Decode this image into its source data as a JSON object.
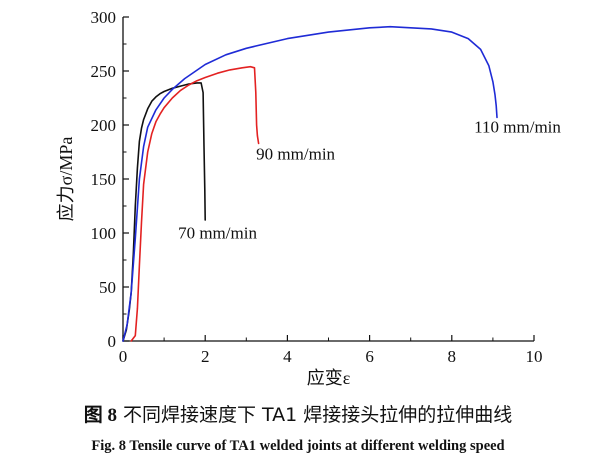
{
  "caption": {
    "cn_label": "图 8",
    "cn_text": "不同焊接速度下 TA1 焊接接头拉伸的拉伸曲线",
    "en": "Fig. 8    Tensile curve of TA1 welded joints at different welding speed"
  },
  "chart_data": {
    "type": "line",
    "xlabel": "应变ε",
    "ylabel": "应力σ/MPa",
    "xlim": [
      0,
      10
    ],
    "ylim": [
      0,
      300
    ],
    "xticks": [
      0,
      2,
      4,
      6,
      8,
      10
    ],
    "yticks": [
      0,
      50,
      100,
      150,
      200,
      250,
      300
    ],
    "grid": false,
    "legend": "none",
    "series": [
      {
        "name": "70 mm/min",
        "color": "#111111",
        "x": [
          0,
          0.08,
          0.15,
          0.2,
          0.25,
          0.3,
          0.35,
          0.4,
          0.45,
          0.5,
          0.6,
          0.7,
          0.8,
          0.9,
          1.0,
          1.2,
          1.4,
          1.6,
          1.8,
          1.9,
          1.95,
          1.97,
          1.99,
          2.0
        ],
        "y": [
          0,
          10,
          28,
          45,
          80,
          125,
          160,
          185,
          197,
          205,
          215,
          222,
          226,
          229,
          231,
          234,
          236,
          238,
          239,
          239,
          230,
          180,
          140,
          112
        ]
      },
      {
        "name": "90 mm/min",
        "color": "#e32222",
        "x": [
          0.2,
          0.3,
          0.35,
          0.4,
          0.45,
          0.5,
          0.6,
          0.7,
          0.8,
          0.9,
          1.0,
          1.2,
          1.4,
          1.6,
          1.8,
          2.0,
          2.3,
          2.6,
          2.9,
          3.1,
          3.2,
          3.23,
          3.25,
          3.27,
          3.3
        ],
        "y": [
          0,
          5,
          30,
          70,
          110,
          145,
          175,
          192,
          203,
          210,
          216,
          225,
          232,
          237,
          241,
          244,
          248,
          251,
          253,
          254,
          253,
          230,
          200,
          190,
          183
        ]
      },
      {
        "name": "110 mm/min",
        "color": "#1f2bd6",
        "x": [
          0,
          0.1,
          0.2,
          0.3,
          0.4,
          0.5,
          0.6,
          0.8,
          1.0,
          1.2,
          1.5,
          2.0,
          2.5,
          3.0,
          4.0,
          5.0,
          6.0,
          6.5,
          7.0,
          7.5,
          8.0,
          8.4,
          8.7,
          8.9,
          9.0,
          9.05,
          9.08,
          9.1
        ],
        "y": [
          0,
          15,
          45,
          95,
          150,
          180,
          198,
          214,
          225,
          233,
          243,
          256,
          265,
          271,
          280,
          286,
          290,
          291,
          290,
          289,
          286,
          280,
          270,
          255,
          240,
          228,
          218,
          207
        ]
      }
    ],
    "annotations": [
      {
        "text": "110 mm/min",
        "x": 9.6,
        "y": 193
      },
      {
        "text": "90 mm/min",
        "x": 4.2,
        "y": 168
      },
      {
        "text": "70 mm/min",
        "x": 2.3,
        "y": 95
      }
    ]
  }
}
